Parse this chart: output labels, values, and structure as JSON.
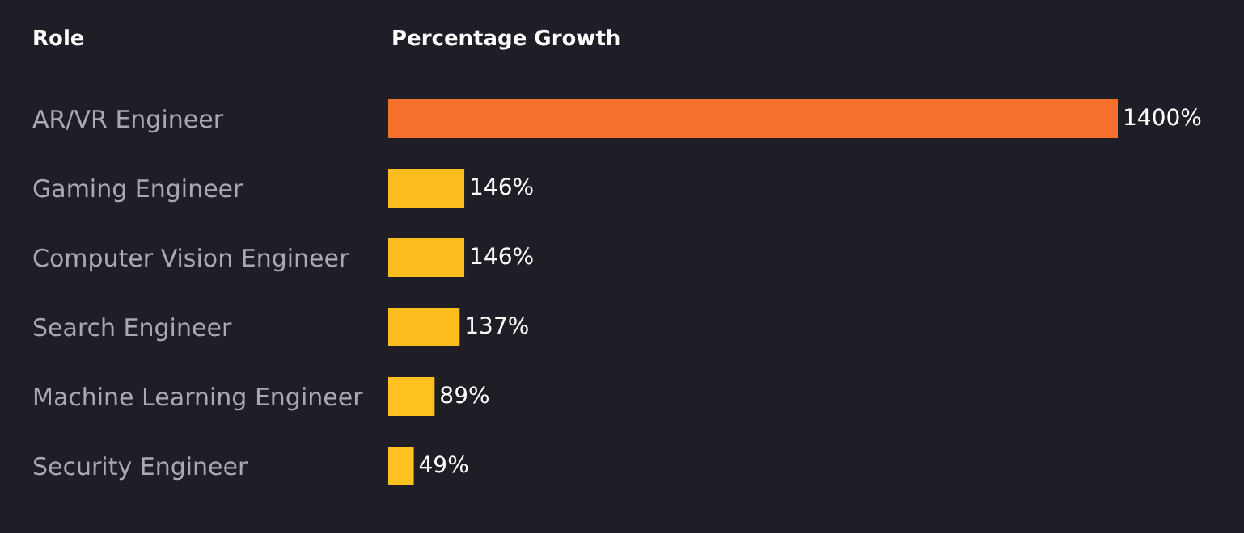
{
  "chart_data": {
    "type": "bar",
    "orientation": "horizontal",
    "ylabel": "Role",
    "xlabel": "Percentage Growth",
    "categories": [
      "AR/VR Engineer",
      "Gaming Engineer",
      "Computer Vision Engineer",
      "Search Engineer",
      "Machine Learning Engineer",
      "Security Engineer"
    ],
    "values": [
      1400,
      146,
      146,
      137,
      89,
      49
    ],
    "colors": [
      "#f5702a",
      "#fdbd1f",
      "#fdbd1f",
      "#fdbd1f",
      "#fdc21f",
      "#fdc21f"
    ],
    "value_labels": [
      "1400%",
      "146%",
      "146%",
      "137%",
      "89%",
      "49%"
    ]
  }
}
